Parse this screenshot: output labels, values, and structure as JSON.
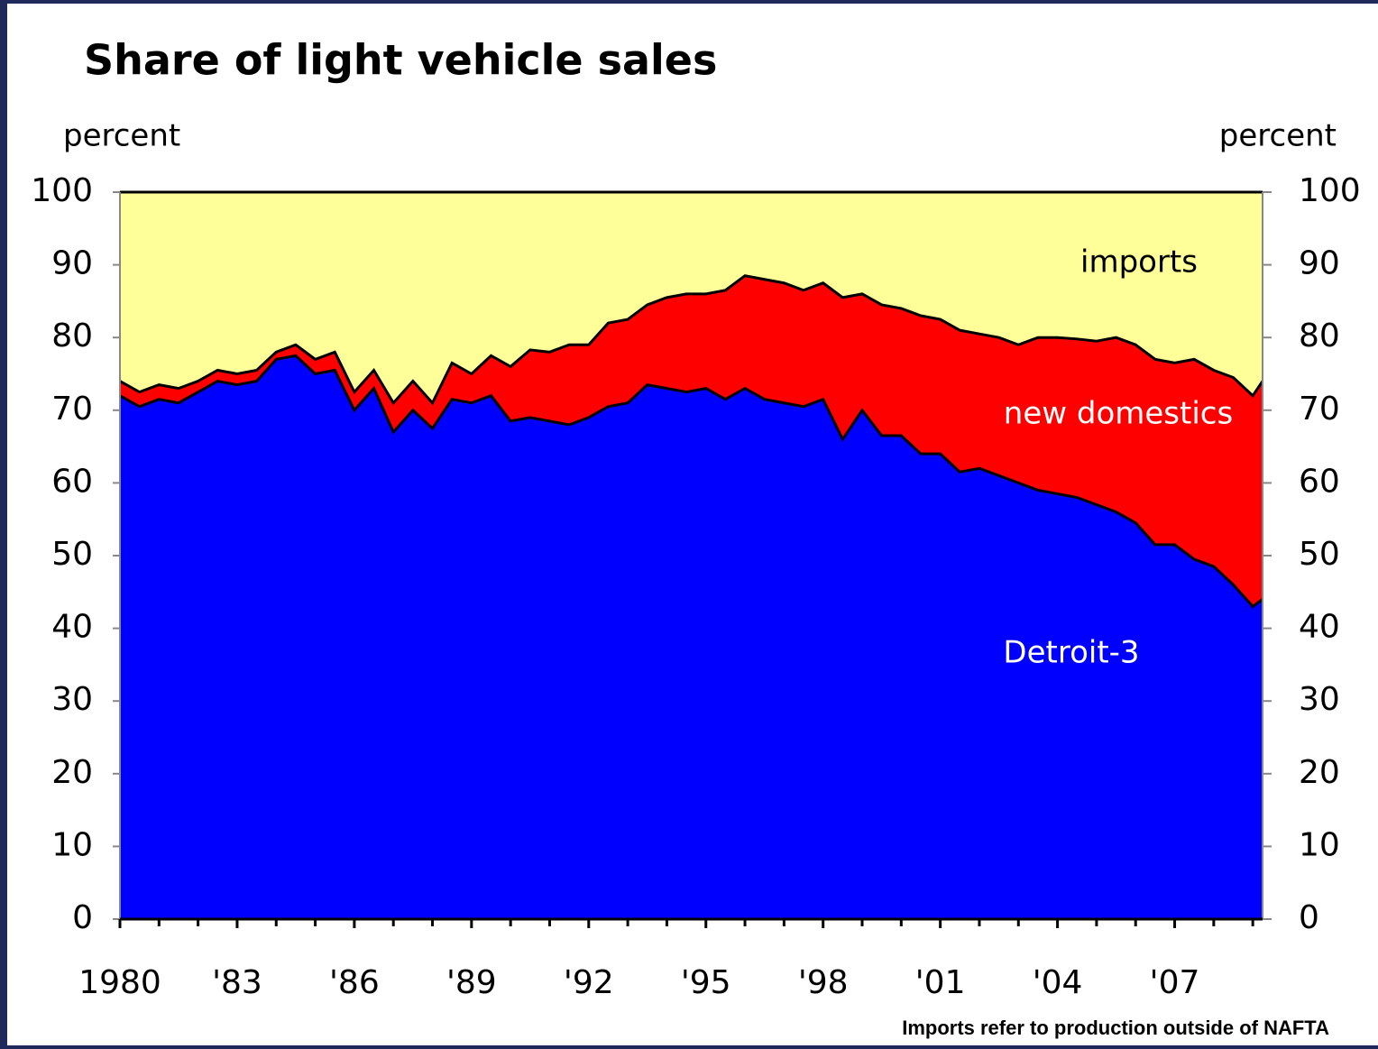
{
  "chart_data": {
    "type": "stacked_area",
    "title": "Share of light vehicle sales",
    "ylabel": "percent",
    "y2label": "percent",
    "note": "Imports refer to production outside of NAFTA",
    "x": [
      1980,
      1980.5,
      1981,
      1981.5,
      1982,
      1982.5,
      1983,
      1983.5,
      1984,
      1984.5,
      1985,
      1985.5,
      1986,
      1986.5,
      1987,
      1987.5,
      1988,
      1988.5,
      1989,
      1989.5,
      1990,
      1990.5,
      1991,
      1991.5,
      1992,
      1992.5,
      1993,
      1993.5,
      1994,
      1994.5,
      1995,
      1995.5,
      1996,
      1996.5,
      1997,
      1997.5,
      1998,
      1998.5,
      1999,
      1999.5,
      2000,
      2000.5,
      2001,
      2001.5,
      2002,
      2002.5,
      2003,
      2003.5,
      2004,
      2004.5,
      2005,
      2005.5,
      2006,
      2006.5,
      2007,
      2007.5,
      2008,
      2008.5,
      2009,
      2009.25
    ],
    "series": [
      {
        "name": "Detroit-3",
        "color": "#0000ff",
        "label_color": "#ffffff",
        "values": [
          72,
          70.5,
          71.5,
          71,
          72.5,
          74,
          73.5,
          74,
          77,
          77.5,
          75,
          75.5,
          70,
          73,
          67,
          70,
          67.5,
          71.5,
          71,
          72,
          68.5,
          69,
          68.5,
          68,
          69,
          70.5,
          71,
          73.5,
          73,
          72.5,
          73,
          71.5,
          73,
          71.5,
          71,
          70.5,
          71.5,
          66,
          70,
          66.5,
          66.5,
          64,
          64,
          61.5,
          62,
          61,
          60,
          59,
          58.5,
          58,
          57,
          56,
          54.5,
          51.5,
          51.5,
          49.5,
          48.5,
          46,
          43,
          44
        ]
      },
      {
        "name": "new domestics",
        "color": "#ff0000",
        "label_color": "#ffffff",
        "values": [
          2,
          2,
          2,
          2,
          1.5,
          1.5,
          1.5,
          1.5,
          1,
          1.5,
          2,
          2.5,
          2.5,
          2.5,
          4,
          4,
          3.5,
          5,
          4,
          5.5,
          7.5,
          9.3,
          9.5,
          11,
          10,
          11.5,
          11.5,
          11,
          12.5,
          13.5,
          13,
          15,
          15.5,
          16.5,
          16.5,
          16,
          16,
          19.5,
          16,
          18,
          17.5,
          19,
          18.5,
          19.5,
          18.5,
          19,
          19,
          21,
          21.5,
          21.8,
          22.5,
          24,
          24.5,
          25.5,
          25,
          27.5,
          27,
          28.5,
          29,
          30
        ]
      },
      {
        "name": "imports",
        "color": "#ffff99",
        "label_color": "#000000",
        "values": [
          26,
          27.5,
          26.5,
          27,
          26,
          24.5,
          25,
          24.5,
          22,
          21,
          23,
          22,
          27.5,
          24.5,
          29,
          26,
          29,
          23.5,
          25,
          22.5,
          24,
          21.7,
          22,
          21,
          21,
          18,
          17.5,
          15.5,
          14.5,
          14,
          14,
          13.5,
          11.5,
          12,
          12.5,
          13.5,
          12.5,
          14.5,
          14,
          15.5,
          16,
          17,
          17.5,
          19,
          19.5,
          20,
          21,
          20,
          20,
          20.2,
          20.5,
          20,
          21,
          23,
          23.5,
          23,
          24.5,
          25.5,
          28,
          26
        ]
      }
    ],
    "xlim": [
      1980,
      2009.25
    ],
    "xticks": [
      1980,
      {
        "value": 1983,
        "label": "'83"
      },
      {
        "value": 1986,
        "label": "'86"
      },
      {
        "value": 1989,
        "label": "'89"
      },
      {
        "value": 1992,
        "label": "'92"
      },
      {
        "value": 1995,
        "label": "'95"
      },
      {
        "value": 1998,
        "label": "'98"
      },
      {
        "value": 2001,
        "label": "'01"
      },
      {
        "value": 2004,
        "label": "'04"
      },
      {
        "value": 2007,
        "label": "'07"
      }
    ],
    "xminorticks": [
      1981,
      1982,
      1984,
      1985,
      1987,
      1988,
      1990,
      1991,
      1993,
      1994,
      1996,
      1997,
      1999,
      2000,
      2002,
      2003,
      2005,
      2006,
      2008,
      2009
    ],
    "ylim": [
      0,
      100
    ],
    "yticks": [
      0,
      10,
      20,
      30,
      40,
      50,
      60,
      70,
      80,
      90,
      100
    ],
    "y2lim": [
      0,
      100
    ],
    "y2ticks": [
      0,
      10,
      20,
      30,
      40,
      50,
      60,
      70,
      80,
      90,
      100
    ]
  }
}
